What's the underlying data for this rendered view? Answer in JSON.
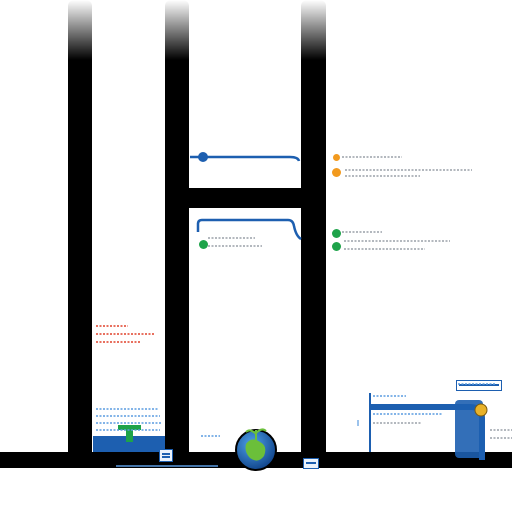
{
  "colors": {
    "pillar": "#000000",
    "pipe_blue": "#1d5fb0",
    "note_blue": "#5a9be0",
    "note_gray": "#9aa0a8",
    "note_red": "#e0402a",
    "dot_orange": "#f29a1e",
    "dot_green": "#1ea34a",
    "globe_blue": "#1f6fc8",
    "globe_green": "#6bbf3a"
  },
  "icons": {
    "globe": "globe-icon",
    "coin": "coin-icon",
    "sprout": "sprout-icon"
  },
  "notes": []
}
